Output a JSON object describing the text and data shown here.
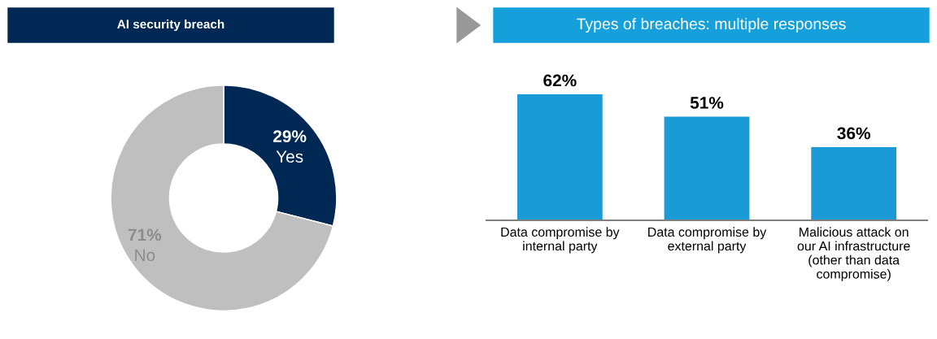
{
  "chart_data": [
    {
      "type": "donut",
      "title": "AI security breach",
      "categories": [
        "Yes",
        "No"
      ],
      "values": [
        29,
        71
      ],
      "value_labels": [
        "29%",
        "71%"
      ],
      "colors": [
        "#002855",
        "#bfbfbf"
      ]
    },
    {
      "type": "bar",
      "title": "Types of breaches: multiple responses",
      "categories": [
        "Data compromise by\ninternal party",
        "Data compromise by\nexternal party",
        "Malicious attack on\nour AI infrastructure\n(other than data\ncompromise)"
      ],
      "values": [
        62,
        51,
        36
      ],
      "value_labels": [
        "62%",
        "51%",
        "36%"
      ],
      "color": "#1a9ad6"
    }
  ]
}
